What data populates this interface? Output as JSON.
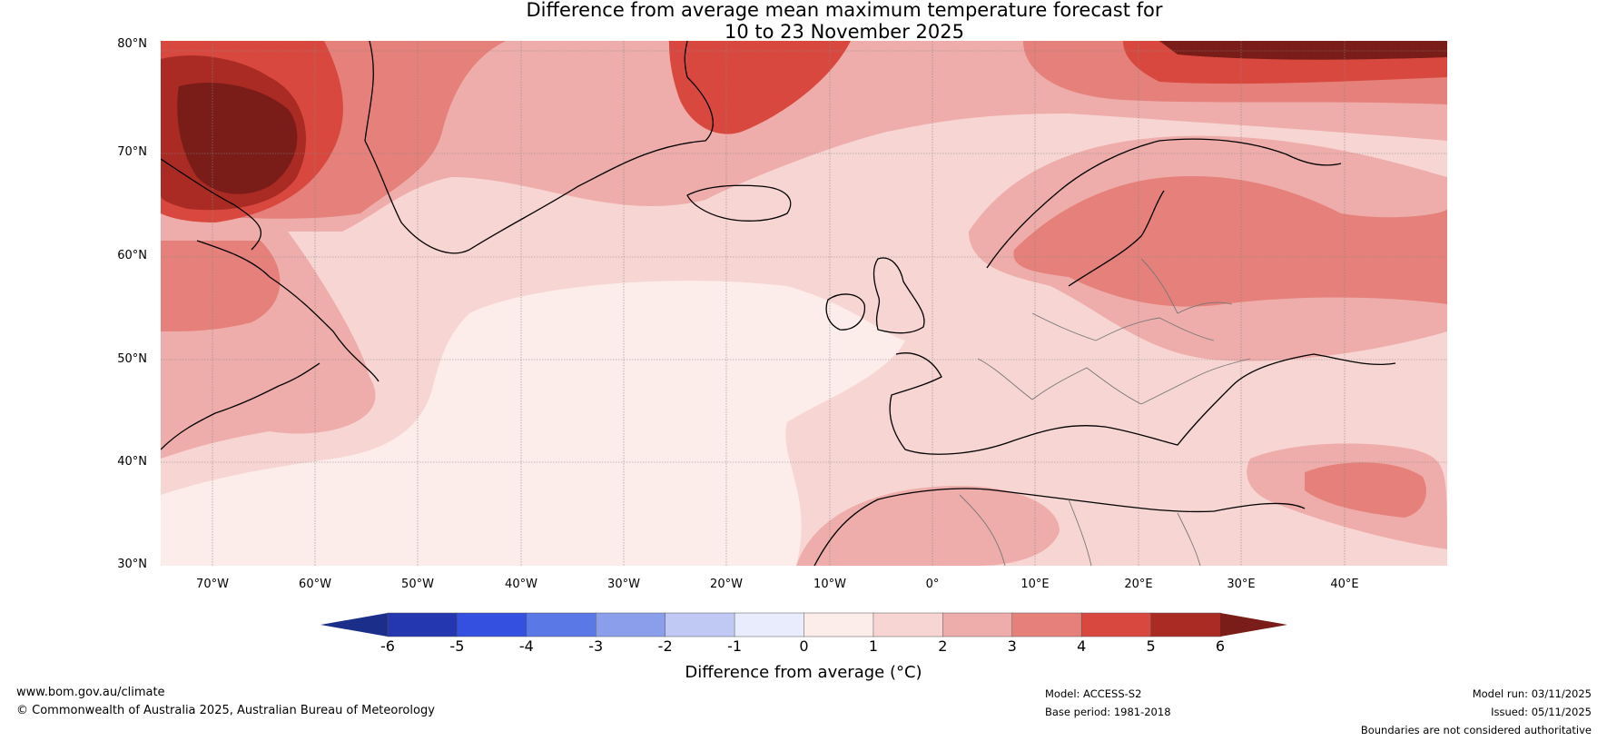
{
  "title": {
    "line1": "Difference from average mean maximum temperature forecast for",
    "line2": "10 to 23 November 2025"
  },
  "map": {
    "latitude_labels": [
      "80°N",
      "70°N",
      "60°N",
      "50°N",
      "40°N",
      "30°N"
    ],
    "longitude_labels": [
      "70°W",
      "60°W",
      "50°W",
      "40°W",
      "30°W",
      "20°W",
      "10°W",
      "0°",
      "10°E",
      "20°E",
      "30°E",
      "40°E"
    ],
    "extent": {
      "lon_min": -75,
      "lon_max": 50,
      "lat_min": 30,
      "lat_max": 81
    }
  },
  "legend": {
    "title": "Difference from average (°C)",
    "ticks": [
      "-6",
      "-5",
      "-4",
      "-3",
      "-2",
      "-1",
      "0",
      "1",
      "2",
      "3",
      "4",
      "5",
      "6"
    ],
    "colors": {
      "below_min": "#1b2e8a",
      "bins": [
        "#2537b0",
        "#3350e0",
        "#5a78e6",
        "#8a9eec",
        "#c0c8f4",
        "#e8ecfc",
        "#fcecea",
        "#f7d5d3",
        "#eeadaa",
        "#e5807a",
        "#d8483e",
        "#a92b24"
      ],
      "above_max": "#7a1c17"
    }
  },
  "footer": {
    "website": "www.bom.gov.au/climate",
    "copyright": "© Commonwealth of Australia 2025, Australian Bureau of Meteorology",
    "model": "Model: ACCESS-S2",
    "base_period": "Base period: 1981-2018",
    "model_run": "Model run: 03/11/2025",
    "issued": "Issued: 05/11/2025",
    "disclaimer": "Boundaries are not considered authoritative"
  }
}
